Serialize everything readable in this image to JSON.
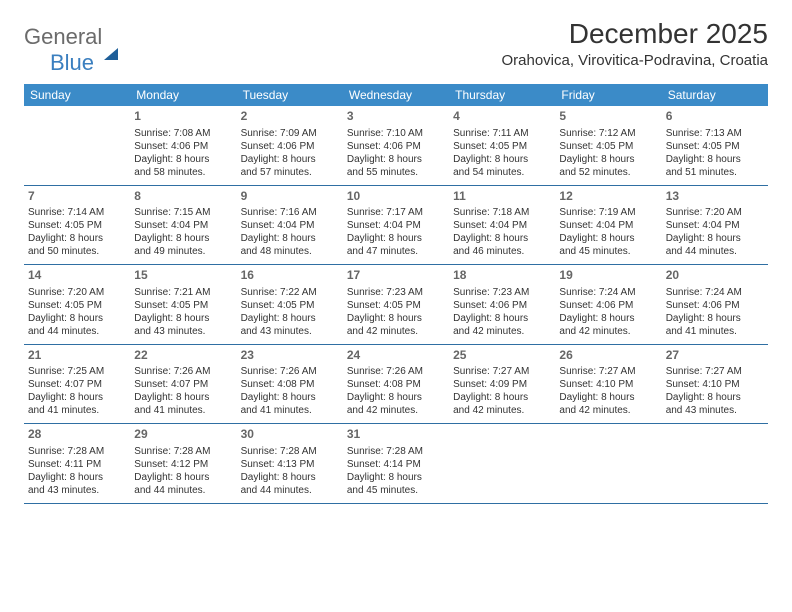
{
  "logo": {
    "part1": "General",
    "part2": "Blue"
  },
  "title": "December 2025",
  "location": "Orahovica, Virovitica-Podravina, Croatia",
  "day_headers": [
    "Sunday",
    "Monday",
    "Tuesday",
    "Wednesday",
    "Thursday",
    "Friday",
    "Saturday"
  ],
  "colors": {
    "header_bg": "#3b8bc8",
    "header_text": "#ffffff",
    "border": "#2f6fa3",
    "logo_gray": "#6b6b6b",
    "logo_blue": "#3b7fbf"
  },
  "weeks": [
    [
      null,
      {
        "n": "1",
        "sr": "Sunrise: 7:08 AM",
        "ss": "Sunset: 4:06 PM",
        "d1": "Daylight: 8 hours",
        "d2": "and 58 minutes."
      },
      {
        "n": "2",
        "sr": "Sunrise: 7:09 AM",
        "ss": "Sunset: 4:06 PM",
        "d1": "Daylight: 8 hours",
        "d2": "and 57 minutes."
      },
      {
        "n": "3",
        "sr": "Sunrise: 7:10 AM",
        "ss": "Sunset: 4:06 PM",
        "d1": "Daylight: 8 hours",
        "d2": "and 55 minutes."
      },
      {
        "n": "4",
        "sr": "Sunrise: 7:11 AM",
        "ss": "Sunset: 4:05 PM",
        "d1": "Daylight: 8 hours",
        "d2": "and 54 minutes."
      },
      {
        "n": "5",
        "sr": "Sunrise: 7:12 AM",
        "ss": "Sunset: 4:05 PM",
        "d1": "Daylight: 8 hours",
        "d2": "and 52 minutes."
      },
      {
        "n": "6",
        "sr": "Sunrise: 7:13 AM",
        "ss": "Sunset: 4:05 PM",
        "d1": "Daylight: 8 hours",
        "d2": "and 51 minutes."
      }
    ],
    [
      {
        "n": "7",
        "sr": "Sunrise: 7:14 AM",
        "ss": "Sunset: 4:05 PM",
        "d1": "Daylight: 8 hours",
        "d2": "and 50 minutes."
      },
      {
        "n": "8",
        "sr": "Sunrise: 7:15 AM",
        "ss": "Sunset: 4:04 PM",
        "d1": "Daylight: 8 hours",
        "d2": "and 49 minutes."
      },
      {
        "n": "9",
        "sr": "Sunrise: 7:16 AM",
        "ss": "Sunset: 4:04 PM",
        "d1": "Daylight: 8 hours",
        "d2": "and 48 minutes."
      },
      {
        "n": "10",
        "sr": "Sunrise: 7:17 AM",
        "ss": "Sunset: 4:04 PM",
        "d1": "Daylight: 8 hours",
        "d2": "and 47 minutes."
      },
      {
        "n": "11",
        "sr": "Sunrise: 7:18 AM",
        "ss": "Sunset: 4:04 PM",
        "d1": "Daylight: 8 hours",
        "d2": "and 46 minutes."
      },
      {
        "n": "12",
        "sr": "Sunrise: 7:19 AM",
        "ss": "Sunset: 4:04 PM",
        "d1": "Daylight: 8 hours",
        "d2": "and 45 minutes."
      },
      {
        "n": "13",
        "sr": "Sunrise: 7:20 AM",
        "ss": "Sunset: 4:04 PM",
        "d1": "Daylight: 8 hours",
        "d2": "and 44 minutes."
      }
    ],
    [
      {
        "n": "14",
        "sr": "Sunrise: 7:20 AM",
        "ss": "Sunset: 4:05 PM",
        "d1": "Daylight: 8 hours",
        "d2": "and 44 minutes."
      },
      {
        "n": "15",
        "sr": "Sunrise: 7:21 AM",
        "ss": "Sunset: 4:05 PM",
        "d1": "Daylight: 8 hours",
        "d2": "and 43 minutes."
      },
      {
        "n": "16",
        "sr": "Sunrise: 7:22 AM",
        "ss": "Sunset: 4:05 PM",
        "d1": "Daylight: 8 hours",
        "d2": "and 43 minutes."
      },
      {
        "n": "17",
        "sr": "Sunrise: 7:23 AM",
        "ss": "Sunset: 4:05 PM",
        "d1": "Daylight: 8 hours",
        "d2": "and 42 minutes."
      },
      {
        "n": "18",
        "sr": "Sunrise: 7:23 AM",
        "ss": "Sunset: 4:06 PM",
        "d1": "Daylight: 8 hours",
        "d2": "and 42 minutes."
      },
      {
        "n": "19",
        "sr": "Sunrise: 7:24 AM",
        "ss": "Sunset: 4:06 PM",
        "d1": "Daylight: 8 hours",
        "d2": "and 42 minutes."
      },
      {
        "n": "20",
        "sr": "Sunrise: 7:24 AM",
        "ss": "Sunset: 4:06 PM",
        "d1": "Daylight: 8 hours",
        "d2": "and 41 minutes."
      }
    ],
    [
      {
        "n": "21",
        "sr": "Sunrise: 7:25 AM",
        "ss": "Sunset: 4:07 PM",
        "d1": "Daylight: 8 hours",
        "d2": "and 41 minutes."
      },
      {
        "n": "22",
        "sr": "Sunrise: 7:26 AM",
        "ss": "Sunset: 4:07 PM",
        "d1": "Daylight: 8 hours",
        "d2": "and 41 minutes."
      },
      {
        "n": "23",
        "sr": "Sunrise: 7:26 AM",
        "ss": "Sunset: 4:08 PM",
        "d1": "Daylight: 8 hours",
        "d2": "and 41 minutes."
      },
      {
        "n": "24",
        "sr": "Sunrise: 7:26 AM",
        "ss": "Sunset: 4:08 PM",
        "d1": "Daylight: 8 hours",
        "d2": "and 42 minutes."
      },
      {
        "n": "25",
        "sr": "Sunrise: 7:27 AM",
        "ss": "Sunset: 4:09 PM",
        "d1": "Daylight: 8 hours",
        "d2": "and 42 minutes."
      },
      {
        "n": "26",
        "sr": "Sunrise: 7:27 AM",
        "ss": "Sunset: 4:10 PM",
        "d1": "Daylight: 8 hours",
        "d2": "and 42 minutes."
      },
      {
        "n": "27",
        "sr": "Sunrise: 7:27 AM",
        "ss": "Sunset: 4:10 PM",
        "d1": "Daylight: 8 hours",
        "d2": "and 43 minutes."
      }
    ],
    [
      {
        "n": "28",
        "sr": "Sunrise: 7:28 AM",
        "ss": "Sunset: 4:11 PM",
        "d1": "Daylight: 8 hours",
        "d2": "and 43 minutes."
      },
      {
        "n": "29",
        "sr": "Sunrise: 7:28 AM",
        "ss": "Sunset: 4:12 PM",
        "d1": "Daylight: 8 hours",
        "d2": "and 44 minutes."
      },
      {
        "n": "30",
        "sr": "Sunrise: 7:28 AM",
        "ss": "Sunset: 4:13 PM",
        "d1": "Daylight: 8 hours",
        "d2": "and 44 minutes."
      },
      {
        "n": "31",
        "sr": "Sunrise: 7:28 AM",
        "ss": "Sunset: 4:14 PM",
        "d1": "Daylight: 8 hours",
        "d2": "and 45 minutes."
      },
      null,
      null,
      null
    ]
  ]
}
